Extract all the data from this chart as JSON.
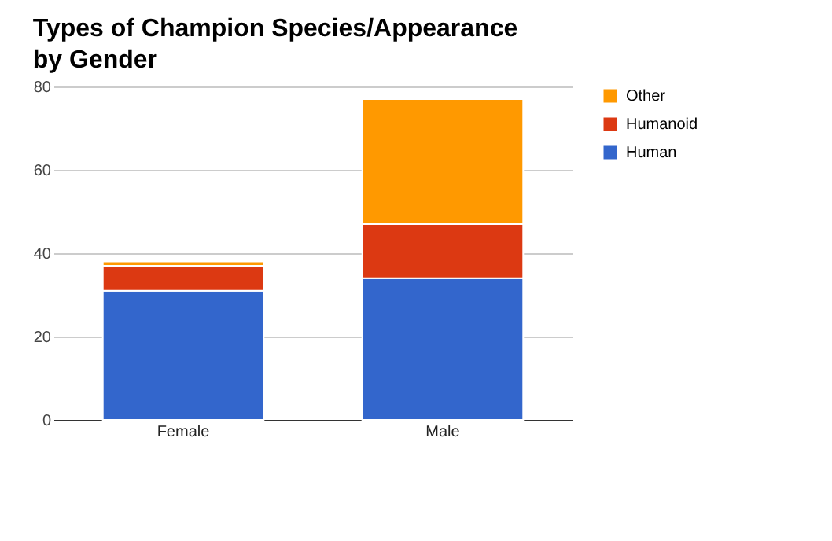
{
  "chart_data": {
    "type": "bar",
    "title": "Types of Champion Species/Appearance by Gender",
    "categories": [
      "Female",
      "Male"
    ],
    "stacked": true,
    "series": [
      {
        "name": "Human",
        "color": "#3366cc",
        "values": [
          31,
          34
        ]
      },
      {
        "name": "Humanoid",
        "color": "#dc3912",
        "values": [
          6,
          13
        ]
      },
      {
        "name": "Other",
        "color": "#ff9900",
        "values": [
          1,
          30
        ]
      }
    ],
    "ylim": [
      0,
      80
    ],
    "yticks": [
      0,
      20,
      40,
      60,
      80
    ],
    "grid": "y",
    "legend": "top right"
  }
}
